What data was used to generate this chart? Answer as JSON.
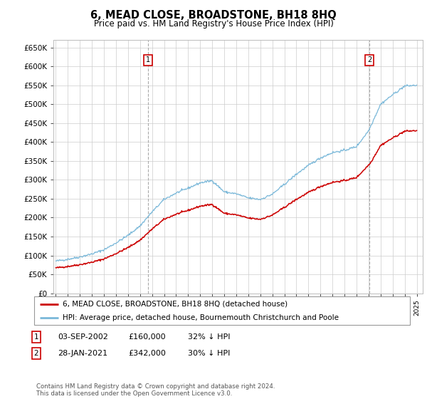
{
  "title": "6, MEAD CLOSE, BROADSTONE, BH18 8HQ",
  "subtitle": "Price paid vs. HM Land Registry's House Price Index (HPI)",
  "legend_line1": "6, MEAD CLOSE, BROADSTONE, BH18 8HQ (detached house)",
  "legend_line2": "HPI: Average price, detached house, Bournemouth Christchurch and Poole",
  "annotation1_date": "03-SEP-2002",
  "annotation1_price": "£160,000",
  "annotation1_hpi": "32% ↓ HPI",
  "annotation1_year": 2002.67,
  "annotation1_value": 160000,
  "annotation2_date": "28-JAN-2021",
  "annotation2_price": "£342,000",
  "annotation2_hpi": "30% ↓ HPI",
  "annotation2_year": 2021.08,
  "annotation2_value": 342000,
  "hpi_color": "#7ab8d9",
  "price_color": "#cc0000",
  "ylim": [
    0,
    670000
  ],
  "yticks": [
    0,
    50000,
    100000,
    150000,
    200000,
    250000,
    300000,
    350000,
    400000,
    450000,
    500000,
    550000,
    600000,
    650000
  ],
  "xlim_left": 1994.8,
  "xlim_right": 2025.5,
  "footer": "Contains HM Land Registry data © Crown copyright and database right 2024.\nThis data is licensed under the Open Government Licence v3.0.",
  "background_color": "#ffffff",
  "grid_color": "#cccccc"
}
